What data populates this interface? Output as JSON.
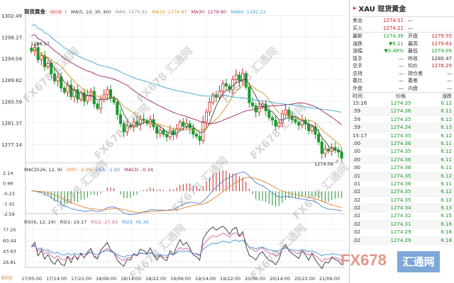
{
  "chart": {
    "title": "现货黄金",
    "period": "60分",
    "ma_legend": {
      "label": "MA(5, 10, 30, 60)",
      "ma5": "MA5: 1275.91",
      "ma10": "MA10: 1276.87",
      "ma30": "MA30: 1279.90",
      "ma60": "MA60: 1282.23"
    },
    "macd_legend": {
      "label": "MACD(26, 12, 9)",
      "diff": "DIFF: -2.09",
      "dea": "DEA: -1.93",
      "macd": "MACD: -0.34"
    },
    "rsi_legend": {
      "label": "RSI(6, 12, 24)",
      "rsi1": "RSI1: 19.17",
      "rsi2": "RSI2: 27.93",
      "rsi3": "RSI3: 36.30"
    },
    "period_footer": "60分",
    "high_label": "1296.37",
    "low_label": "1274.09",
    "price_ticks": [
      "1302.49",
      "1298.27",
      "1294.04",
      "1289.82",
      "1285.59",
      "1281.37",
      "1277.14"
    ],
    "macd_ticks": [
      "2.14",
      "0.96",
      "-0.23",
      "-1.41",
      "-2.59"
    ],
    "rsi_ticks": [
      "77.25",
      "60.44",
      "43.63",
      "26.81"
    ],
    "x_ticks": [
      "17/05:00",
      "17/14:00",
      "17/22:00",
      "18/06:00",
      "18/14:00",
      "18/22:00",
      "19/06:00",
      "19/14:00",
      "19/22:00",
      "20/06:00",
      "20/14:00",
      "20/22:00",
      "21/06:00"
    ]
  },
  "watermark": "FX678 汇通网",
  "brand": {
    "left": "FX678",
    "right": "汇通网"
  },
  "colors": {
    "up": "#d02020",
    "down": "#1a9a2a",
    "ma5": "#444444",
    "ma10": "#d09020",
    "ma30": "#a02060",
    "ma60": "#40a0d0",
    "diff": "#5080d0",
    "dea": "#e08030",
    "rsi1": "#333333",
    "rsi2": "#d060a0",
    "rsi3": "#4090d0"
  },
  "quote": {
    "flag": "▸",
    "title": "XAU 现货黄金",
    "sell": {
      "label": "卖出",
      "value": "1274.51",
      "aux": "—"
    },
    "buy": {
      "label": "买入",
      "value": "1274.21",
      "aux": "—"
    },
    "rows": [
      {
        "l1": "最新",
        "v1": "1274.36",
        "l2": "开盘",
        "v2": "1279.55",
        "c1": "green",
        "c2": "red"
      },
      {
        "l1": "涨跌",
        "v1": "▼6.11",
        "l2": "最高",
        "v2": "1279.63",
        "c1": "green",
        "c2": "red"
      },
      {
        "l1": "涨幅",
        "v1": "▼0.48%",
        "l2": "最低",
        "v2": "1274.09",
        "c1": "green",
        "c2": "green"
      },
      {
        "l1": "现手",
        "v1": "—",
        "l2": "昨收",
        "v2": "1280.47",
        "c1": "",
        "c2": ""
      },
      {
        "l1": "总手",
        "v1": "—",
        "l2": "均价",
        "v2": "1276.29",
        "c1": "",
        "c2": "red"
      },
      {
        "l1": "总持",
        "v1": "—",
        "l2": "持仓差",
        "v2": "—",
        "c1": "",
        "c2": ""
      },
      {
        "l1": "委比",
        "v1": "—",
        "l2": "委差",
        "v2": "—",
        "c1": "",
        "c2": ""
      },
      {
        "l1": "外盘",
        "v1": "—",
        "l2": "内盘",
        "v2": "—",
        "c1": "",
        "c2": ""
      }
    ],
    "tick_header": {
      "time": "时间",
      "price": "价格",
      "change": "涨跌"
    },
    "ticks": [
      {
        "time": "15:16",
        "price": "1274.35",
        "change": "6.12"
      },
      {
        "time": ".59",
        "price": "1274.36",
        "change": "6.11"
      },
      {
        "time": ".59",
        "price": "1274.35",
        "change": "6.12"
      },
      {
        "time": ".59",
        "price": "1274.34",
        "change": "6.13"
      },
      {
        "time": "15:17",
        "price": "1274.35",
        "change": "6.12"
      },
      {
        "time": ".00",
        "price": "1274.36",
        "change": "6.11"
      },
      {
        "time": ".00",
        "price": "1274.35",
        "change": "6.12"
      },
      {
        "time": ".00",
        "price": "1274.36",
        "change": "6.11"
      },
      {
        "time": ".00",
        "price": "1274.36",
        "change": "6.11"
      },
      {
        "time": ".01",
        "price": "1274.35",
        "change": "6.12"
      },
      {
        "time": ".01",
        "price": "1274.36",
        "change": "6.11"
      },
      {
        "time": ".02",
        "price": "1274.35",
        "change": "6.12"
      },
      {
        "time": ".02",
        "price": "1274.35",
        "change": "6.12"
      },
      {
        "time": ".02",
        "price": "1274.34",
        "change": "6.13"
      },
      {
        "time": ".02",
        "price": "1274.32",
        "change": "6.15"
      },
      {
        "time": ".02",
        "price": "1274.31",
        "change": "6.16"
      },
      {
        "time": ".02",
        "price": "1274.29",
        "change": "6.18"
      },
      {
        "time": ".02",
        "price": "1274.29",
        "change": "6.18"
      }
    ]
  },
  "chart_data": {
    "type": "candlestick",
    "title": "现货黄金",
    "x_ticks": [
      "17/05:00",
      "17/14:00",
      "17/22:00",
      "18/06:00",
      "18/14:00",
      "18/22:00",
      "19/06:00",
      "19/14:00",
      "19/22:00",
      "20/06:00",
      "20/14:00",
      "20/22:00",
      "21/06:00"
    ],
    "price_range": [
      1273.5,
      1302.49
    ],
    "candles_close": [
      1295.5,
      1296.2,
      1293.8,
      1294.6,
      1292.4,
      1293.1,
      1291.0,
      1289.6,
      1290.4,
      1288.2,
      1287.4,
      1288.8,
      1286.5,
      1287.9,
      1286.0,
      1287.3,
      1285.6,
      1286.8,
      1287.6,
      1285.1,
      1284.2,
      1286.0,
      1286.9,
      1287.9,
      1286.2,
      1285.4,
      1283.0,
      1281.2,
      1279.6,
      1280.8,
      1280.5,
      1281.6,
      1281.0,
      1282.1,
      1281.8,
      1281.2,
      1282.0,
      1280.6,
      1279.3,
      1279.9,
      1279.1,
      1278.6,
      1279.8,
      1279.0,
      1280.2,
      1281.5,
      1280.7,
      1281.2,
      1280.3,
      1279.1,
      1278.7,
      1277.9,
      1281.6,
      1283.5,
      1285.4,
      1286.9,
      1286.4,
      1287.6,
      1289.1,
      1288.6,
      1287.9,
      1289.9,
      1290.8,
      1289.6,
      1291.1,
      1288.4,
      1285.3,
      1284.7,
      1283.5,
      1284.6,
      1285.1,
      1283.7,
      1282.4,
      1281.9,
      1280.7,
      1281.4,
      1283.1,
      1283.9,
      1282.7,
      1282.0,
      1281.5,
      1280.9,
      1281.9,
      1281.1,
      1279.8,
      1280.6,
      1279.1,
      1277.6,
      1275.3,
      1276.2,
      1275.8,
      1276.5,
      1276.0,
      1275.6,
      1274.4
    ],
    "ma_lines": [
      "MA5",
      "MA10",
      "MA30",
      "MA60"
    ],
    "last": {
      "ma5": 1275.91,
      "ma10": 1276.87,
      "ma30": 1279.9,
      "ma60": 1282.23
    },
    "macd_last": {
      "diff": -2.09,
      "dea": -1.93,
      "macd": -0.34
    },
    "rsi_last": {
      "rsi1": 19.17,
      "rsi2": 27.93,
      "rsi3": 36.3
    },
    "high": 1296.37,
    "low": 1274.09
  }
}
